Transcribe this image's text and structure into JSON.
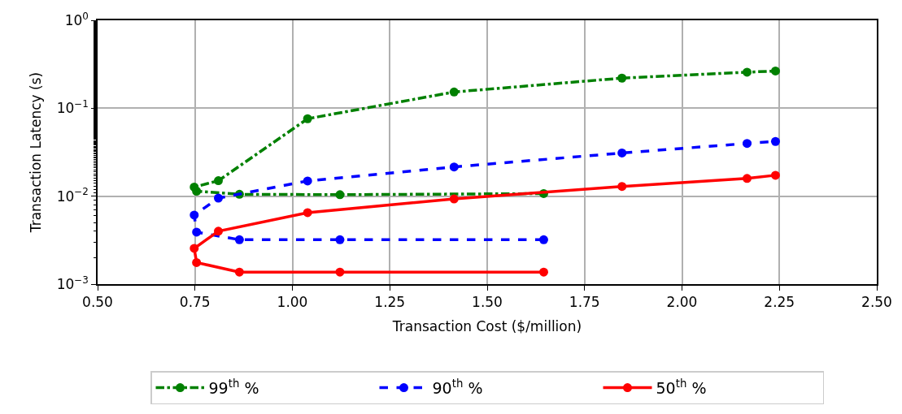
{
  "chart_data": {
    "type": "line",
    "xlabel": "Transaction Cost ($/million)",
    "ylabel": "Transaction Latency (s)",
    "log": "y",
    "grid": true,
    "legend": "bottom",
    "marker": "circle",
    "xlim": [
      0.5,
      2.5
    ],
    "xticks": [
      {
        "value": 0.5,
        "label": "0.50"
      },
      {
        "value": 0.75,
        "label": "0.75"
      },
      {
        "value": 1.0,
        "label": "1.00"
      },
      {
        "value": 1.25,
        "label": "1.25"
      },
      {
        "value": 1.5,
        "label": "1.50"
      },
      {
        "value": 1.75,
        "label": "1.75"
      },
      {
        "value": 2.0,
        "label": "2.00"
      },
      {
        "value": 2.25,
        "label": "2.25"
      },
      {
        "value": 2.5,
        "label": "2.50"
      }
    ],
    "ylim": [
      0.001,
      1
    ],
    "yticks": [
      {
        "value": 0.001,
        "label": "10$^{−3}$"
      },
      {
        "value": 0.01,
        "label": "10$^{−2}$"
      },
      {
        "value": 0.1,
        "label": "10$^{−1}$"
      },
      {
        "value": 1,
        "label": "10$^{0}$"
      }
    ],
    "series": [
      {
        "name": "99$^{th}$ %",
        "color": "#008000",
        "line_style": "dashdot",
        "x": [
          1.645,
          1.122,
          0.864,
          0.754,
          0.748,
          0.81,
          1.039,
          1.415,
          1.846,
          2.167,
          2.24
        ],
        "values": [
          0.0107,
          0.0104,
          0.0105,
          0.0114,
          0.0127,
          0.015,
          0.076,
          0.153,
          0.22,
          0.257,
          0.265
        ]
      },
      {
        "name": "90$^{th}$ %",
        "color": "#0000ff",
        "line_style": "dashed",
        "x": [
          1.645,
          1.122,
          0.864,
          0.754,
          0.748,
          0.81,
          1.039,
          1.415,
          1.846,
          2.167,
          2.24
        ],
        "values": [
          0.0032,
          0.0032,
          0.0032,
          0.0039,
          0.0061,
          0.0095,
          0.0149,
          0.0215,
          0.031,
          0.0398,
          0.0419
        ]
      },
      {
        "name": "50$^{th}$ %",
        "color": "#ff0000",
        "line_style": "solid",
        "x": [
          1.645,
          1.122,
          0.864,
          0.754,
          0.748,
          0.81,
          1.039,
          1.415,
          1.846,
          2.167,
          2.24
        ],
        "values": [
          0.00137,
          0.00137,
          0.00137,
          0.00176,
          0.00255,
          0.004,
          0.0065,
          0.0093,
          0.0129,
          0.0159,
          0.0173
        ]
      }
    ]
  }
}
